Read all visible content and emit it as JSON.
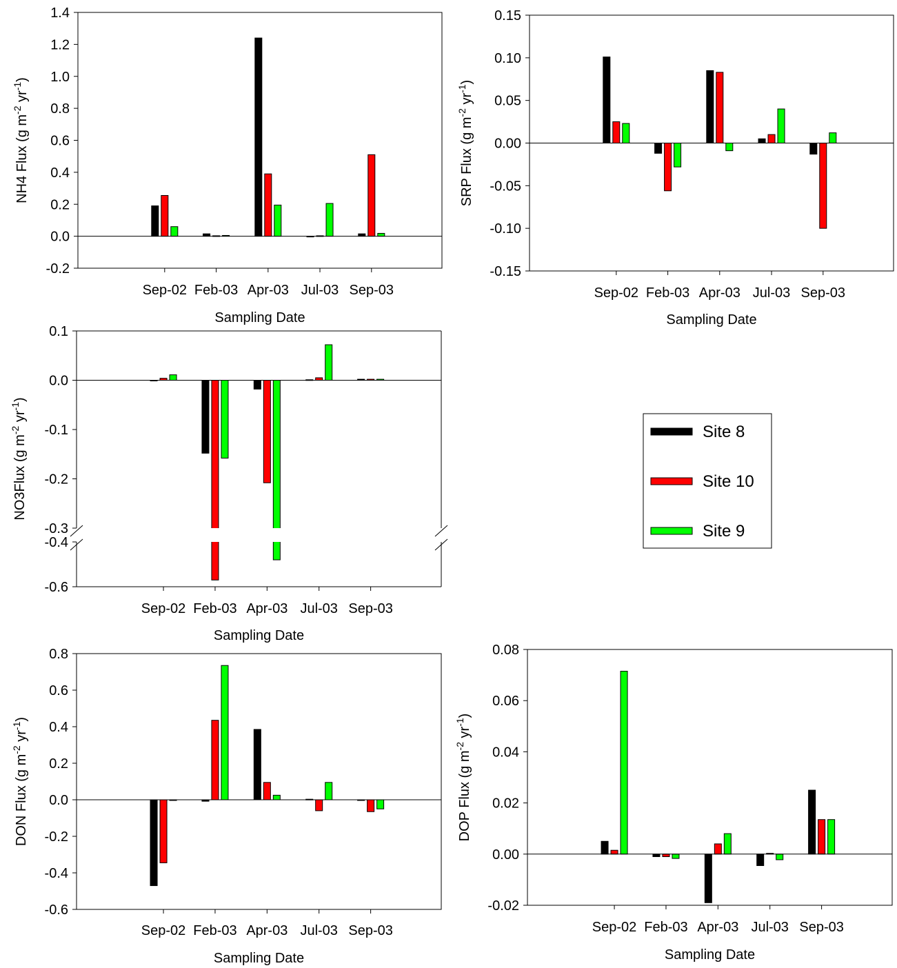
{
  "colors": {
    "Site 8": "#000000",
    "Site 10": "#ff0000",
    "Site 9": "#00ff00"
  },
  "legend": {
    "entries": [
      {
        "label": "Site 8",
        "color": "#000000"
      },
      {
        "label": "Site 10",
        "color": "#ff0000"
      },
      {
        "label": "Site 9",
        "color": "#00ff00"
      }
    ]
  },
  "chart_data": [
    {
      "id": "nh4",
      "type": "bar",
      "xlabel": "Sampling Date",
      "ylabel": "NH4 Flux (g m-2 yr-1)",
      "ylabel_base": "NH4 Flux (g m",
      "categories": [
        "Sep-02",
        "Feb-03",
        "Apr-03",
        "Jul-03",
        "Sep-03"
      ],
      "ylim": [
        -0.2,
        1.4
      ],
      "yticks": [
        -0.2,
        0.0,
        0.2,
        0.4,
        0.6,
        0.8,
        1.0,
        1.2,
        1.4
      ],
      "tick_labels": [
        "-0.2",
        "0.0",
        "0.2",
        "0.4",
        "0.6",
        "0.8",
        "1.0",
        "1.2",
        "1.4"
      ],
      "series": [
        {
          "name": "Site 8",
          "values": [
            0.19,
            0.015,
            1.24,
            0.0,
            0.015
          ]
        },
        {
          "name": "Site 10",
          "values": [
            0.255,
            0.003,
            0.39,
            0.003,
            0.51
          ]
        },
        {
          "name": "Site 9",
          "values": [
            0.06,
            0.005,
            0.195,
            0.205,
            0.018
          ]
        }
      ]
    },
    {
      "id": "srp",
      "type": "bar",
      "xlabel": "Sampling Date",
      "ylabel": "SRP Flux (g m-2 yr-1)",
      "ylabel_base": "SRP Flux (g m",
      "categories": [
        "Sep-02",
        "Feb-03",
        "Apr-03",
        "Jul-03",
        "Sep-03"
      ],
      "ylim": [
        -0.15,
        0.15
      ],
      "yticks": [
        -0.15,
        -0.1,
        -0.05,
        0.0,
        0.05,
        0.1,
        0.15
      ],
      "tick_labels": [
        "-0.15",
        "-0.10",
        "-0.05",
        "0.00",
        "0.05",
        "0.10",
        "0.15"
      ],
      "series": [
        {
          "name": "Site 8",
          "values": [
            0.101,
            -0.012,
            0.085,
            0.005,
            -0.013
          ]
        },
        {
          "name": "Site 10",
          "values": [
            0.025,
            -0.056,
            0.083,
            0.01,
            -0.1
          ]
        },
        {
          "name": "Site 9",
          "values": [
            0.023,
            -0.028,
            -0.009,
            0.04,
            0.012
          ]
        }
      ]
    },
    {
      "id": "no3",
      "type": "bar",
      "xlabel": "Sampling Date",
      "ylabel": "NO3Flux (g m-2 yr-1)",
      "ylabel_base": "NO3Flux (g m",
      "categories": [
        "Sep-02",
        "Feb-03",
        "Apr-03",
        "Jul-03",
        "Sep-03"
      ],
      "ylim": [
        -0.6,
        0.1
      ],
      "axis_break": [
        -0.4,
        -0.3
      ],
      "yticks": [
        -0.6,
        -0.4,
        -0.3,
        -0.2,
        -0.1,
        0.0,
        0.1
      ],
      "tick_labels": [
        "-0.6",
        "-0.4",
        "-0.3",
        "-0.2",
        "-0.1",
        "0.0",
        "0.1"
      ],
      "series": [
        {
          "name": "Site 8",
          "values": [
            0.0,
            -0.148,
            -0.018,
            0.001,
            0.002
          ]
        },
        {
          "name": "Site 10",
          "values": [
            0.004,
            -0.57,
            -0.208,
            0.005,
            0.002
          ]
        },
        {
          "name": "Site 9",
          "values": [
            0.011,
            -0.158,
            -0.48,
            0.072,
            0.002
          ]
        }
      ]
    },
    {
      "id": "don",
      "type": "bar",
      "xlabel": "Sampling Date",
      "ylabel": "DON Flux (g m-2 yr-1)",
      "ylabel_base": "DON Flux (g m",
      "categories": [
        "Sep-02",
        "Feb-03",
        "Apr-03",
        "Jul-03",
        "Sep-03"
      ],
      "ylim": [
        -0.6,
        0.8
      ],
      "yticks": [
        -0.6,
        -0.4,
        -0.2,
        0.0,
        0.2,
        0.4,
        0.6,
        0.8
      ],
      "tick_labels": [
        "-0.6",
        "-0.4",
        "-0.2",
        "0.0",
        "0.2",
        "0.4",
        "0.6",
        "0.8"
      ],
      "series": [
        {
          "name": "Site 8",
          "values": [
            -0.47,
            -0.008,
            0.385,
            0.003,
            0.0
          ]
        },
        {
          "name": "Site 10",
          "values": [
            -0.345,
            0.435,
            0.095,
            -0.06,
            -0.065
          ]
        },
        {
          "name": "Site 9",
          "values": [
            0.0,
            0.735,
            0.025,
            0.095,
            -0.05
          ]
        }
      ]
    },
    {
      "id": "dop",
      "type": "bar",
      "xlabel": "Sampling Date",
      "ylabel": "DOP Flux (g m-2 yr-1)",
      "ylabel_base": "DOP Flux (g m",
      "categories": [
        "Sep-02",
        "Feb-03",
        "Apr-03",
        "Jul-03",
        "Sep-03"
      ],
      "ylim": [
        -0.02,
        0.08
      ],
      "yticks": [
        -0.02,
        0.0,
        0.02,
        0.04,
        0.06,
        0.08
      ],
      "tick_labels": [
        "-0.02",
        "0.00",
        "0.02",
        "0.04",
        "0.06",
        "0.08"
      ],
      "series": [
        {
          "name": "Site 8",
          "values": [
            0.005,
            -0.001,
            -0.019,
            -0.0045,
            0.025
          ]
        },
        {
          "name": "Site 10",
          "values": [
            0.0015,
            -0.001,
            0.004,
            0.0003,
            0.0135
          ]
        },
        {
          "name": "Site 9",
          "values": [
            0.0715,
            -0.0017,
            0.008,
            -0.0022,
            0.0135
          ]
        }
      ]
    }
  ]
}
